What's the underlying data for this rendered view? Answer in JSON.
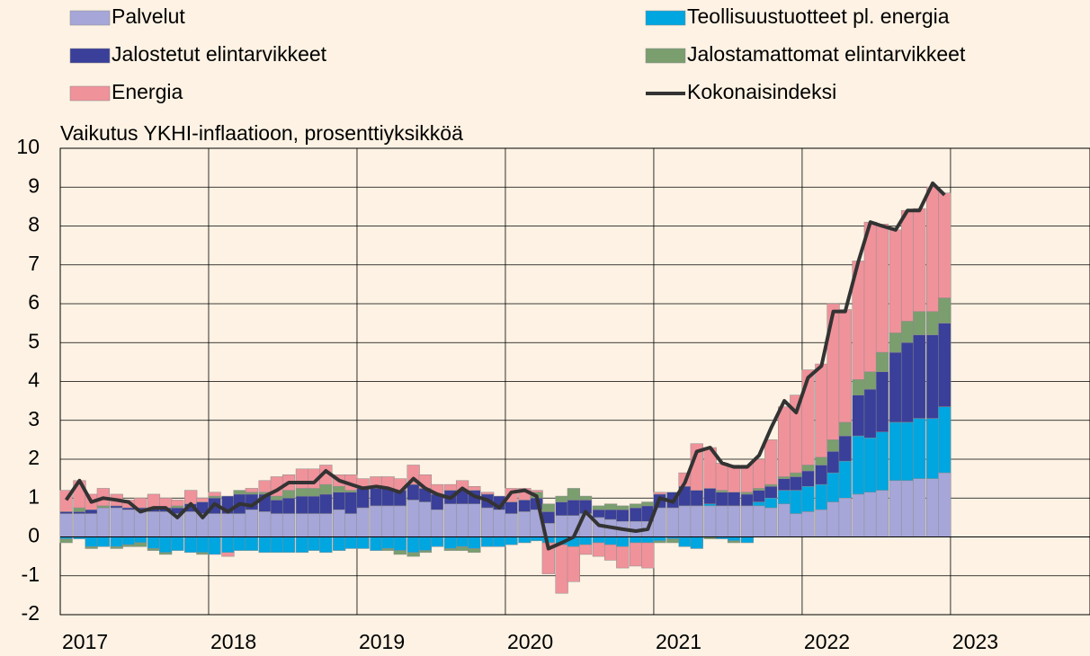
{
  "chart_data": {
    "type": "bar",
    "stacked": true,
    "y_axis_label": "Vaikutus YKHI-inflaatioon, prosenttiyksikköä",
    "x": [
      2017.04,
      2017.13,
      2017.21,
      2017.29,
      2017.38,
      2017.46,
      2017.54,
      2017.63,
      2017.71,
      2017.79,
      2017.88,
      2017.96,
      2018.04,
      2018.13,
      2018.21,
      2018.29,
      2018.38,
      2018.46,
      2018.54,
      2018.63,
      2018.71,
      2018.79,
      2018.88,
      2018.96,
      2019.04,
      2019.13,
      2019.21,
      2019.29,
      2019.38,
      2019.46,
      2019.54,
      2019.63,
      2019.71,
      2019.79,
      2019.88,
      2019.96,
      2020.04,
      2020.13,
      2020.21,
      2020.29,
      2020.38,
      2020.46,
      2020.54,
      2020.63,
      2020.71,
      2020.79,
      2020.88,
      2020.96,
      2021.04,
      2021.13,
      2021.21,
      2021.29,
      2021.38,
      2021.46,
      2021.54,
      2021.63,
      2021.71,
      2021.79,
      2021.88,
      2021.96,
      2022.04,
      2022.13,
      2022.21,
      2022.29,
      2022.38,
      2022.46,
      2022.54,
      2022.63,
      2022.71,
      2022.79,
      2022.88,
      2022.96
    ],
    "xlim": [
      2017,
      2023.94
    ],
    "xticks": [
      2017,
      2018,
      2019,
      2020,
      2021,
      2022,
      2023
    ],
    "ylim": [
      -2,
      10
    ],
    "yticks": [
      -2,
      -1,
      0,
      1,
      2,
      3,
      4,
      5,
      6,
      7,
      8,
      9,
      10
    ],
    "grid": true,
    "legend": "top",
    "series": [
      {
        "name": "Palvelut",
        "color": "#a6a6d8",
        "values": [
          0.6,
          0.6,
          0.6,
          0.75,
          0.75,
          0.7,
          0.7,
          0.65,
          0.65,
          0.6,
          0.65,
          0.6,
          0.6,
          0.6,
          0.6,
          0.7,
          0.65,
          0.6,
          0.6,
          0.6,
          0.6,
          0.6,
          0.7,
          0.6,
          0.75,
          0.8,
          0.8,
          0.8,
          0.95,
          0.9,
          0.7,
          0.85,
          0.85,
          0.85,
          0.75,
          0.7,
          0.6,
          0.65,
          0.7,
          0.35,
          0.55,
          0.55,
          0.6,
          0.5,
          0.45,
          0.4,
          0.4,
          0.4,
          0.75,
          0.75,
          0.8,
          0.8,
          0.8,
          0.8,
          0.8,
          0.8,
          0.8,
          0.75,
          0.85,
          0.6,
          0.65,
          0.7,
          0.9,
          1.0,
          1.1,
          1.15,
          1.2,
          1.45,
          1.45,
          1.5,
          1.5,
          1.65
        ]
      },
      {
        "name": "Teollisuustuotteet pl. energia",
        "color": "#00a6e0",
        "values": [
          -0.05,
          -0.05,
          -0.25,
          -0.25,
          -0.25,
          -0.2,
          -0.15,
          -0.3,
          -0.4,
          -0.35,
          -0.4,
          -0.4,
          -0.45,
          -0.4,
          -0.35,
          -0.35,
          -0.4,
          -0.4,
          -0.4,
          -0.4,
          -0.35,
          -0.4,
          -0.35,
          -0.3,
          -0.3,
          -0.35,
          -0.3,
          -0.35,
          -0.4,
          -0.35,
          -0.25,
          -0.3,
          -0.25,
          -0.3,
          -0.25,
          -0.25,
          -0.2,
          -0.15,
          -0.1,
          -0.15,
          -0.2,
          -0.25,
          -0.2,
          -0.15,
          -0.2,
          -0.25,
          -0.15,
          -0.15,
          -0.1,
          -0.05,
          -0.25,
          -0.3,
          0.05,
          -0.05,
          -0.1,
          -0.15,
          0.1,
          0.25,
          0.35,
          0.6,
          0.65,
          0.65,
          0.75,
          0.95,
          1.5,
          1.4,
          1.5,
          1.5,
          1.5,
          1.55,
          1.55,
          1.7
        ]
      },
      {
        "name": "Jalostetut elintarvikkeet",
        "color": "#3a3f99",
        "values": [
          0.05,
          0.05,
          0.1,
          0.0,
          0.05,
          0.05,
          0.05,
          0.1,
          0.1,
          0.15,
          0.2,
          0.3,
          0.4,
          0.45,
          0.5,
          0.4,
          0.45,
          0.35,
          0.4,
          0.45,
          0.45,
          0.5,
          0.45,
          0.55,
          0.5,
          0.45,
          0.45,
          0.4,
          0.4,
          0.35,
          0.4,
          0.35,
          0.35,
          0.35,
          0.35,
          0.35,
          0.3,
          0.3,
          0.3,
          0.3,
          0.35,
          0.4,
          0.35,
          0.2,
          0.25,
          0.3,
          0.35,
          0.4,
          0.35,
          0.4,
          0.5,
          0.4,
          0.4,
          0.35,
          0.35,
          0.3,
          0.3,
          0.3,
          0.3,
          0.35,
          0.4,
          0.5,
          0.55,
          0.65,
          1.05,
          1.25,
          1.55,
          1.8,
          2.05,
          2.15,
          2.15,
          2.15
        ]
      },
      {
        "name": "Jalostamattomat elintarvikkeet",
        "color": "#7a9e6e",
        "values": [
          -0.1,
          0.1,
          -0.05,
          0.05,
          -0.05,
          -0.05,
          -0.1,
          -0.05,
          -0.05,
          0.05,
          0.0,
          -0.05,
          0.05,
          0.0,
          0.1,
          0.05,
          0.05,
          0.1,
          0.2,
          0.2,
          0.2,
          0.25,
          0.15,
          0.05,
          0.05,
          0.05,
          -0.05,
          -0.1,
          -0.1,
          -0.05,
          0.0,
          -0.05,
          -0.1,
          -0.1,
          0.0,
          0.0,
          0.0,
          0.0,
          0.15,
          0.2,
          0.15,
          0.3,
          0.1,
          0.1,
          0.15,
          0.1,
          0.1,
          0.1,
          -0.05,
          -0.1,
          0.0,
          0.0,
          -0.05,
          0.05,
          -0.05,
          0.05,
          0.05,
          0.05,
          0.05,
          0.1,
          0.15,
          0.2,
          0.3,
          0.35,
          0.4,
          0.45,
          0.5,
          0.5,
          0.55,
          0.6,
          0.6,
          0.65
        ]
      },
      {
        "name": "Energia",
        "color": "#f0929a",
        "values": [
          0.55,
          0.7,
          0.4,
          0.45,
          0.3,
          0.2,
          0.25,
          0.35,
          0.25,
          0.15,
          0.35,
          0.1,
          0.1,
          -0.1,
          0.0,
          0.1,
          0.3,
          0.5,
          0.4,
          0.5,
          0.5,
          0.5,
          0.3,
          0.4,
          0.2,
          0.25,
          0.3,
          0.3,
          0.5,
          0.35,
          0.25,
          0.15,
          0.25,
          0.1,
          0.05,
          0.0,
          0.35,
          0.3,
          0.05,
          -0.8,
          -1.25,
          -0.9,
          -0.25,
          -0.35,
          -0.4,
          -0.55,
          -0.6,
          -0.65,
          0.05,
          0.0,
          0.35,
          1.2,
          1.05,
          0.7,
          0.7,
          0.7,
          0.75,
          1.15,
          1.8,
          2.0,
          2.45,
          2.4,
          3.5,
          2.9,
          3.05,
          3.85,
          3.3,
          2.65,
          2.85,
          2.65,
          3.2,
          2.7
        ]
      },
      {
        "name": "Kokonaisindeksi",
        "color": "#333333",
        "type": "line",
        "values": [
          0.95,
          1.45,
          0.9,
          1.0,
          0.95,
          0.9,
          0.65,
          0.75,
          0.75,
          0.5,
          0.85,
          0.5,
          0.85,
          0.65,
          0.85,
          0.8,
          1.05,
          1.2,
          1.4,
          1.4,
          1.4,
          1.7,
          1.45,
          1.35,
          1.25,
          1.3,
          1.25,
          1.15,
          1.5,
          1.25,
          1.1,
          1.0,
          1.25,
          1.05,
          0.95,
          0.75,
          1.15,
          1.2,
          1.05,
          -0.3,
          -0.15,
          0.0,
          0.65,
          0.3,
          0.25,
          0.2,
          0.15,
          0.2,
          1.0,
          0.9,
          1.4,
          2.2,
          2.3,
          1.9,
          1.8,
          1.8,
          2.1,
          2.8,
          3.5,
          3.2,
          4.1,
          4.4,
          5.8,
          5.8,
          7.1,
          8.1,
          8.0,
          7.9,
          8.4,
          8.4,
          9.1,
          8.8
        ]
      }
    ]
  }
}
